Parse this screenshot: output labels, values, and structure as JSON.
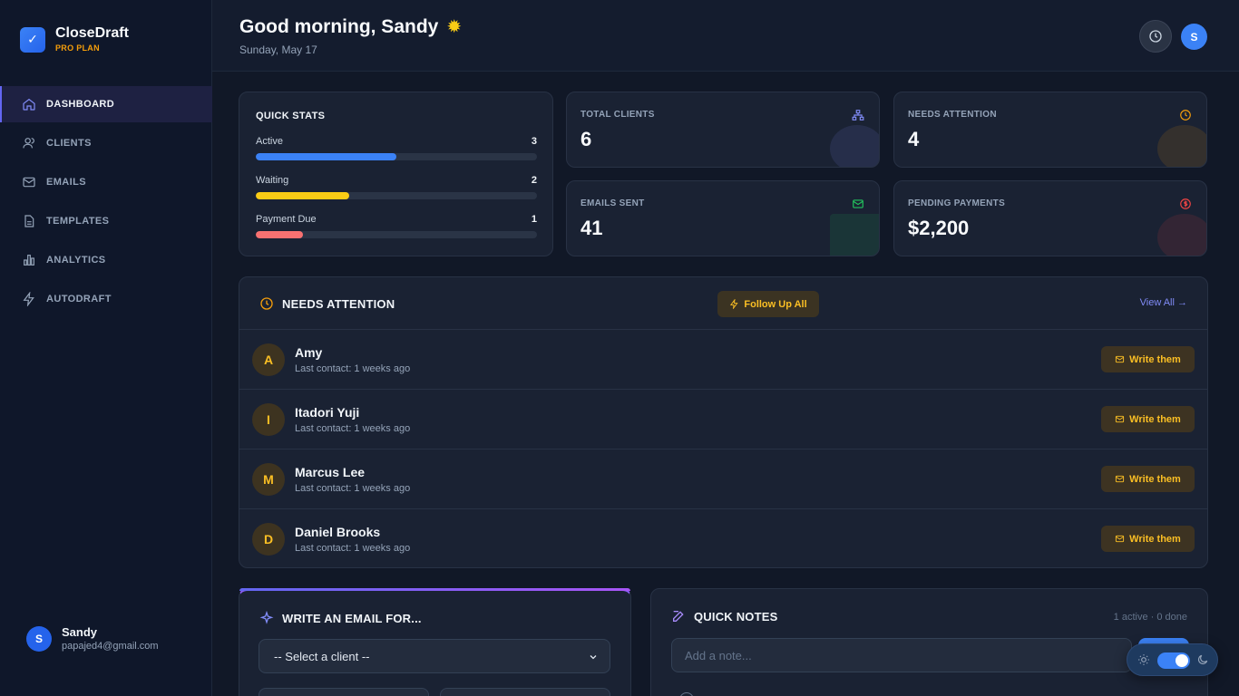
{
  "brand": {
    "name": "CloseDraft",
    "plan": "PRO PLAN"
  },
  "nav": [
    {
      "label": "DASHBOARD",
      "icon": "home-icon",
      "active": true
    },
    {
      "label": "CLIENTS",
      "icon": "users-icon"
    },
    {
      "label": "EMAILS",
      "icon": "mail-icon"
    },
    {
      "label": "TEMPLATES",
      "icon": "file-icon"
    },
    {
      "label": "ANALYTICS",
      "icon": "bar-chart-icon"
    },
    {
      "label": "AUTODRAFT",
      "icon": "lightning-icon"
    }
  ],
  "user": {
    "initial": "S",
    "name": "Sandy",
    "email": "papajed4@gmail.com"
  },
  "header": {
    "greeting": "Good morning, Sandy",
    "date": "Sunday, May 17",
    "avatar_initial": "S"
  },
  "quick_stats": {
    "title": "QUICK STATS",
    "rows": [
      {
        "label": "Active",
        "value": "3",
        "fraction": 0.5,
        "color": "#3b82f6"
      },
      {
        "label": "Waiting",
        "value": "2",
        "fraction": 0.333,
        "color": "#facc15"
      },
      {
        "label": "Payment Due",
        "value": "1",
        "fraction": 0.167,
        "color": "#f87171"
      }
    ]
  },
  "stats": {
    "total_clients": {
      "label": "TOTAL CLIENTS",
      "value": "6",
      "icon": "org-icon",
      "color": "#818cf8"
    },
    "needs_attention": {
      "label": "NEEDS ATTENTION",
      "value": "4",
      "icon": "clock-icon",
      "color": "#f59e0b"
    },
    "emails_sent": {
      "label": "EMAILS SENT",
      "value": "41",
      "icon": "mail-icon",
      "color": "#22c55e"
    },
    "pending_payments": {
      "label": "PENDING PAYMENTS",
      "value": "$2,200",
      "icon": "dollar-icon",
      "color": "#ef4444"
    }
  },
  "attention": {
    "title": "NEEDS ATTENTION",
    "follow_up_label": "Follow Up All",
    "view_all_label": "View All →",
    "write_label": "Write them",
    "clients": [
      {
        "initial": "A",
        "name": "Amy",
        "last_contact": "Last contact: 1 weeks ago"
      },
      {
        "initial": "I",
        "name": "Itadori Yuji",
        "last_contact": "Last contact: 1 weeks ago"
      },
      {
        "initial": "M",
        "name": "Marcus Lee",
        "last_contact": "Last contact: 1 weeks ago"
      },
      {
        "initial": "D",
        "name": "Daniel Brooks",
        "last_contact": "Last contact: 1 weeks ago"
      }
    ]
  },
  "write_email": {
    "title": "WRITE AN EMAIL FOR...",
    "select_value": "-- Select a client --"
  },
  "quick_notes": {
    "title": "QUICK NOTES",
    "count": "1 active · 0 done",
    "placeholder": "Add a note..."
  }
}
